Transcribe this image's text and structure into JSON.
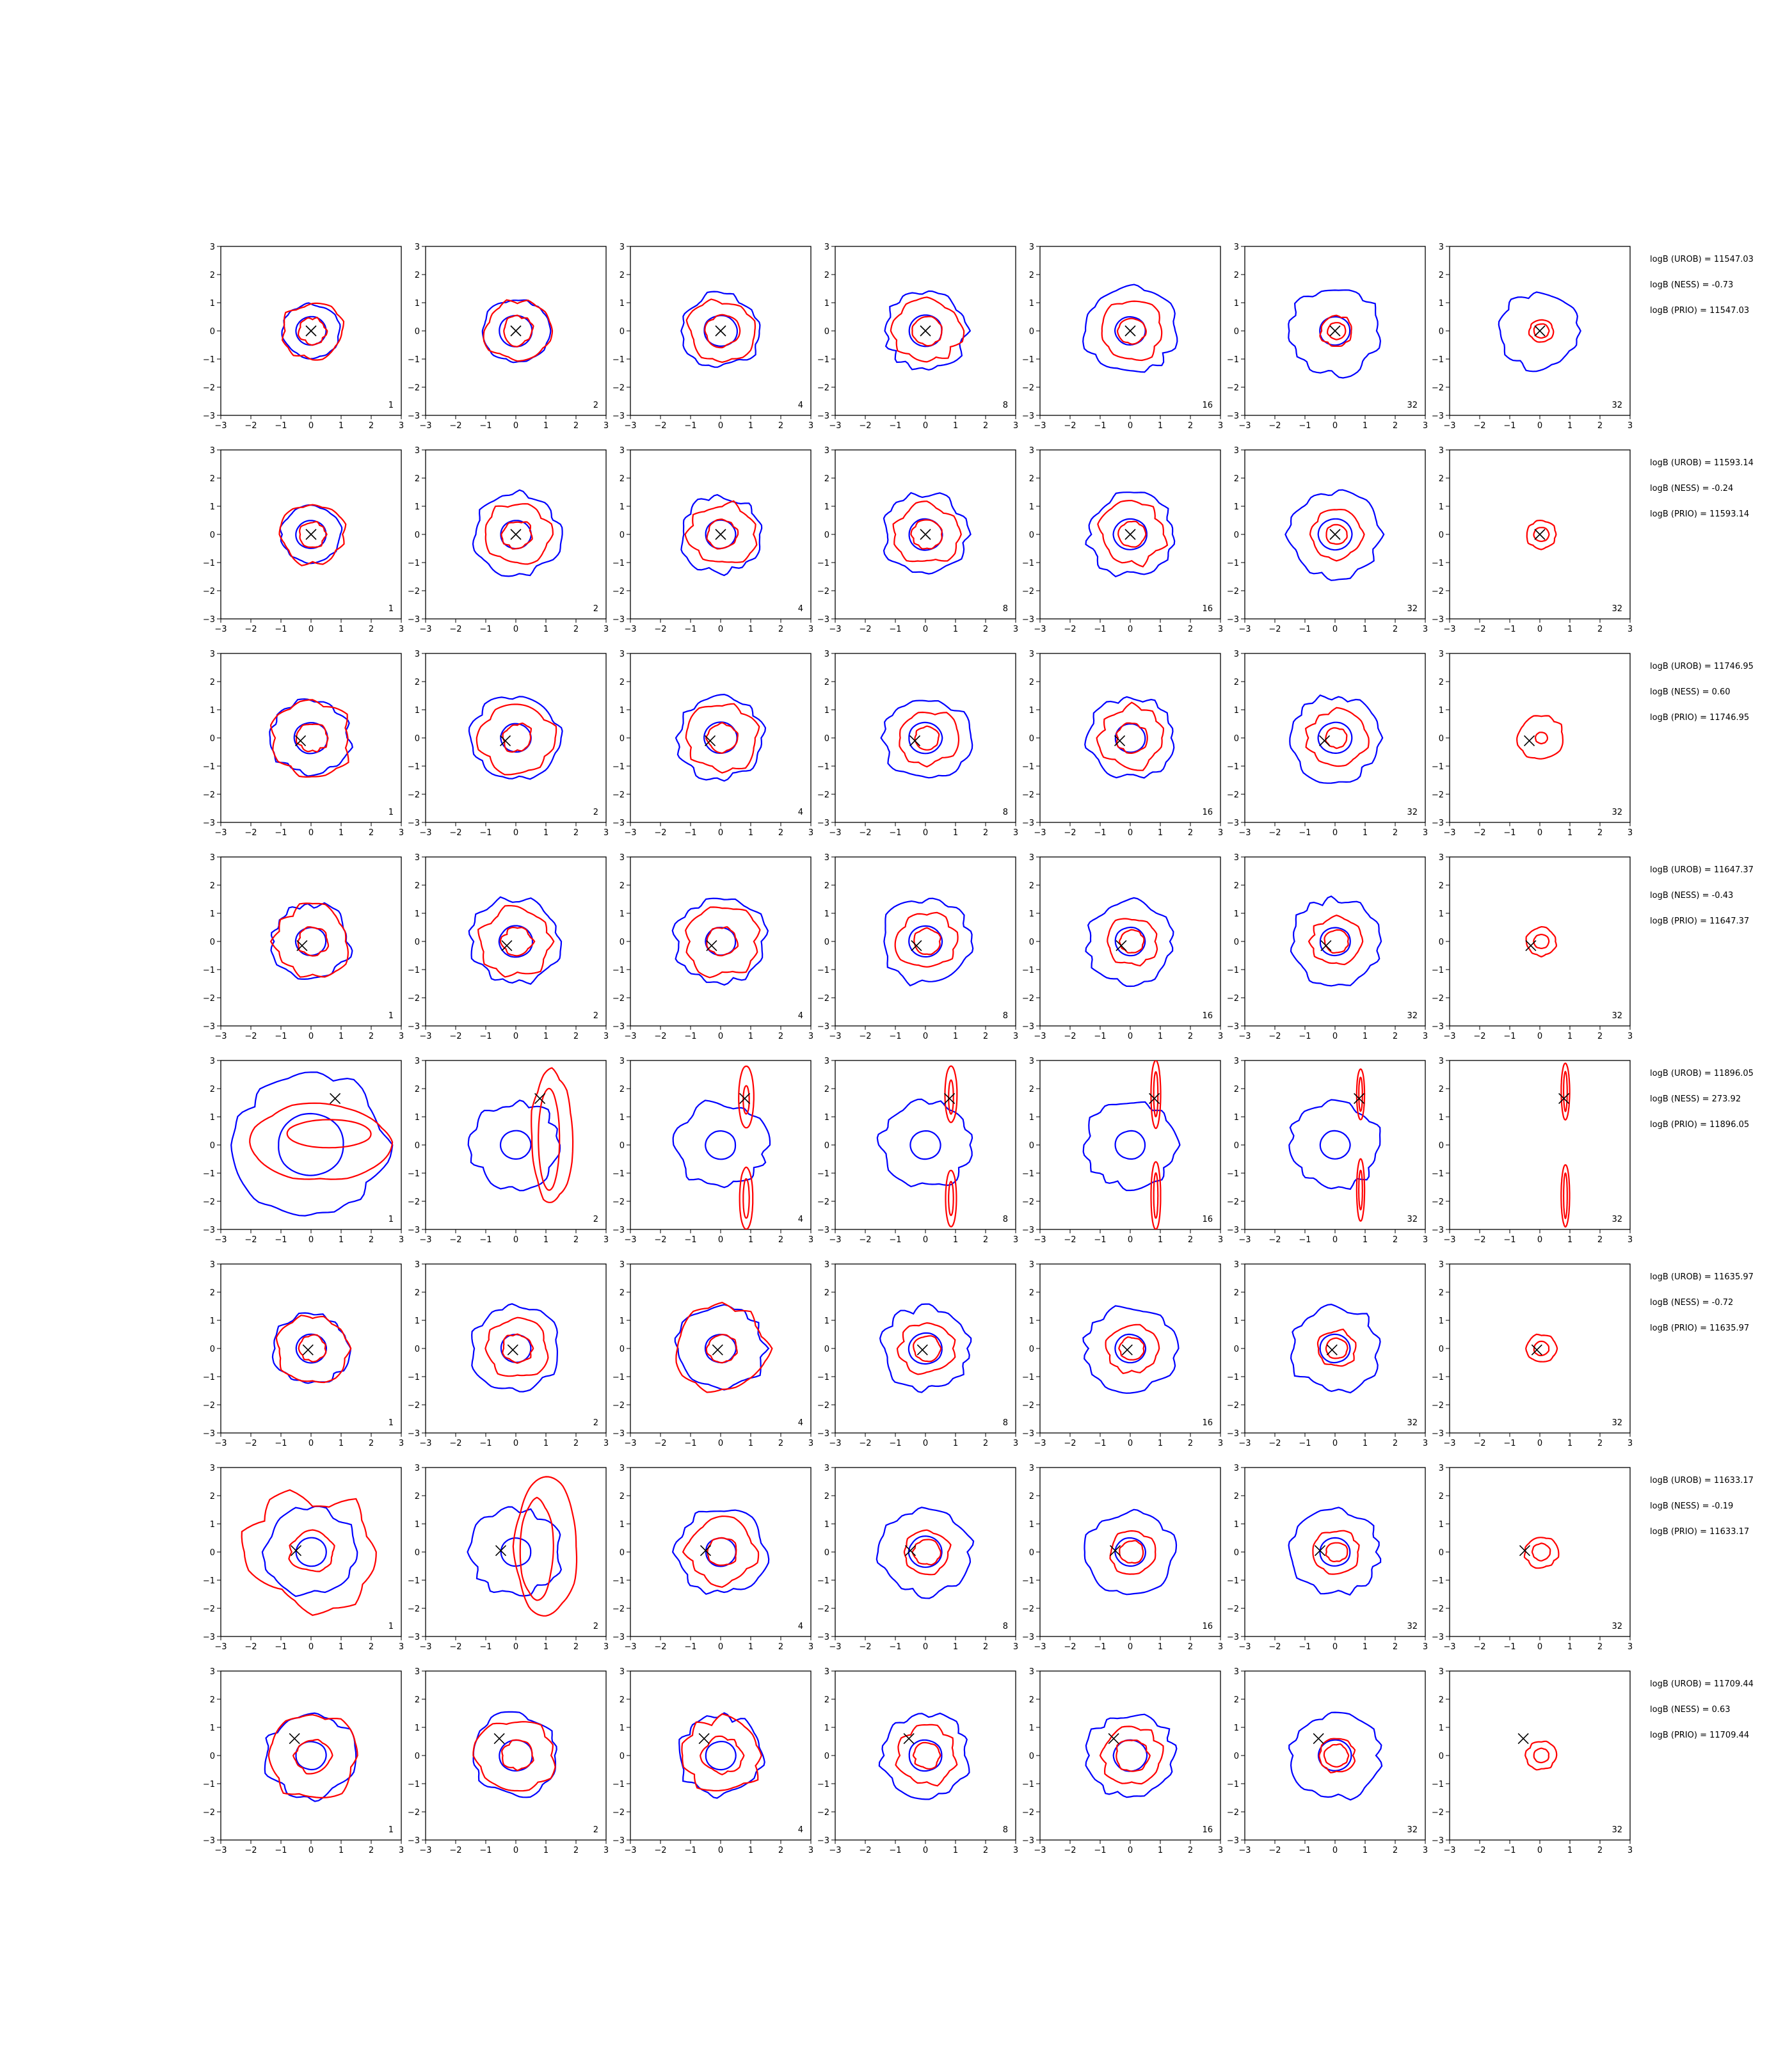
{
  "chart_data": {
    "type": "contour-grid",
    "title": "",
    "xlim": [
      -3,
      3
    ],
    "ylim": [
      -3,
      3
    ],
    "xticks": [
      "−3",
      "−2",
      "−1",
      "0",
      "1",
      "2",
      "3"
    ],
    "yticks": [
      "3",
      "2",
      "1",
      "0",
      "−1",
      "−2",
      "−3"
    ],
    "column_labels": [
      "1",
      "2",
      "4",
      "8",
      "16",
      "32",
      "32"
    ],
    "colors": {
      "reference": "#0000ff",
      "estimate": "#ff0000",
      "marker": "#000000",
      "axes": "#000000"
    },
    "rows": [
      {
        "marker": [
          0.0,
          0.0
        ],
        "stats": [
          "logB (UROB) = 11547.03",
          "logB (NESS) = -0.73",
          "logB (PRIO) = 11547.03"
        ],
        "blue": [
          [
            0.95,
            1.1,
            1.3,
            1.35,
            1.5,
            1.55,
            1.35
          ],
          [
            0.5,
            0.55,
            0.55,
            0.55,
            0.5,
            0.5,
            0
          ]
        ],
        "red": [
          [
            [
              1.0,
              0.45
            ],
            [
              1.05,
              0.5
            ],
            [
              1.1,
              0.55
            ],
            [
              1.1,
              0.5
            ],
            [
              1.0,
              0.6
            ],
            [
              0.55,
              0.45
            ],
            [
              0.4,
              0.3
            ]
          ],
          [
            [
              0.45,
              0.5
            ],
            [
              0.5,
              0.55
            ],
            [
              0.55,
              0.4
            ],
            [
              0.5,
              0.3
            ],
            [
              0.45,
              0.3
            ],
            [
              0.3,
              0.2
            ],
            [
              0.25,
              0.15
            ]
          ]
        ]
      },
      {
        "marker": [
          0.0,
          0.0
        ],
        "stats": [
          "logB (UROB) = 11593.14",
          "logB (NESS) = -0.24",
          "logB (PRIO) = 11593.14"
        ],
        "blue": [
          [
            1.0,
            1.45,
            1.35,
            1.4,
            1.45,
            1.5,
            0
          ],
          [
            0.5,
            0.5,
            0.5,
            0.55,
            0.55,
            0.55,
            0
          ]
        ],
        "red": [
          [
            [
              1.05,
              0.45
            ],
            [
              1.1,
              0.5
            ],
            [
              1.1,
              0.6
            ],
            [
              1.05,
              0.5
            ],
            [
              1.1,
              0.6
            ],
            [
              0.85,
              0.45
            ],
            [
              0.5,
              0.35
            ]
          ],
          [
            [
              0.45,
              0.5
            ],
            [
              0.5,
              0.55
            ],
            [
              0.5,
              0.4
            ],
            [
              0.5,
              0.3
            ],
            [
              0.45,
              0.3
            ],
            [
              0.35,
              0.2
            ],
            [
              0.25,
              0.15
            ]
          ]
        ]
      },
      {
        "marker": [
          -0.35,
          -0.1
        ],
        "stats": [
          "logB (UROB) = 11746.95",
          "logB (NESS) = 0.60",
          "logB (PRIO) = 11746.95"
        ],
        "blue": [
          [
            1.3,
            1.45,
            1.45,
            1.45,
            1.45,
            1.5,
            0
          ],
          [
            0.55,
            0.5,
            0.55,
            0.55,
            0.5,
            0.55,
            0
          ]
        ],
        "red": [
          [
            [
              1.3,
              0.55
            ],
            [
              1.2,
              0.6
            ],
            [
              1.2,
              0.55
            ],
            [
              1.0,
              0.55
            ],
            [
              1.1,
              0.65
            ],
            [
              1.0,
              0.55
            ],
            [
              0.75,
              0.45
            ]
          ],
          [
            [
              0.5,
              0.55
            ],
            [
              0.5,
              0.6
            ],
            [
              0.5,
              0.35
            ],
            [
              0.4,
              0.3
            ],
            [
              0.5,
              0.45
            ],
            [
              0.35,
              0.3
            ],
            [
              0.2,
              0.15
            ]
          ]
        ]
      },
      {
        "marker": [
          -0.3,
          -0.15
        ],
        "stats": [
          "logB (UROB) = 11647.37",
          "logB (NESS) = -0.43",
          "logB (PRIO) = 11647.37"
        ],
        "blue": [
          [
            1.3,
            1.5,
            1.5,
            1.5,
            1.45,
            1.5,
            0
          ],
          [
            0.5,
            0.55,
            0.5,
            0.55,
            0.5,
            0.5,
            0
          ]
        ],
        "red": [
          [
            [
              1.25,
              0.5
            ],
            [
              1.2,
              0.6
            ],
            [
              1.2,
              0.55
            ],
            [
              1.0,
              0.5
            ],
            [
              0.85,
              0.45
            ],
            [
              0.85,
              0.45
            ],
            [
              0.5,
              0.35
            ]
          ],
          [
            [
              0.5,
              0.55
            ],
            [
              0.5,
              0.6
            ],
            [
              0.5,
              0.4
            ],
            [
              0.45,
              0.3
            ],
            [
              0.4,
              0.3
            ],
            [
              0.4,
              0.3
            ],
            [
              0.25,
              0.15
            ]
          ]
        ]
      },
      {
        "marker": [
          0.8,
          1.65
        ],
        "stats": [
          "logB (UROB) = 11896.05",
          "logB (NESS) = 273.92",
          "logB (PRIO) = 11896.05"
        ],
        "blue": [
          [
            2.5,
            1.5,
            1.5,
            1.5,
            1.5,
            1.5,
            0
          ],
          [
            1.1,
            0.5,
            0.5,
            0.5,
            0.5,
            0.5,
            0
          ]
        ],
        "red": [],
        "red_shape": "off-center"
      },
      {
        "marker": [
          -0.1,
          -0.05
        ],
        "stats": [
          "logB (UROB) = 11635.97",
          "logB (NESS) = -0.72",
          "logB (PRIO) = 11635.97"
        ],
        "blue": [
          [
            1.25,
            1.45,
            1.5,
            1.45,
            1.5,
            1.5,
            0
          ],
          [
            0.5,
            0.5,
            0.5,
            0.55,
            0.5,
            0.5,
            0
          ]
        ],
        "red": [
          [
            [
              1.2,
              0.5
            ],
            [
              1.0,
              0.5
            ],
            [
              1.55,
              0.5
            ],
            [
              0.9,
              0.45
            ],
            [
              0.85,
              0.45
            ],
            [
              0.65,
              0.4
            ],
            [
              0.5,
              0.3
            ]
          ],
          [
            [
              0.45,
              0.55
            ],
            [
              0.5,
              0.55
            ],
            [
              0.5,
              0.35
            ],
            [
              0.45,
              0.3
            ],
            [
              0.4,
              0.3
            ],
            [
              0.35,
              0.3
            ],
            [
              0.25,
              0.15
            ]
          ]
        ]
      },
      {
        "marker": [
          -0.5,
          0.05
        ],
        "stats": [
          "logB (UROB) = 11633.17",
          "logB (NESS) = -0.19",
          "logB (PRIO) = 11633.17"
        ],
        "blue": [
          [
            1.5,
            1.5,
            1.5,
            1.5,
            1.45,
            1.45,
            0
          ],
          [
            0.5,
            0.5,
            0.5,
            0.55,
            0.5,
            0.5,
            0
          ]
        ],
        "red": [
          [
            [
              2.0,
              1.0
            ],
            [
              0,
              0
            ],
            [
              1.15,
              0.6
            ],
            [
              0.75,
              0.45
            ],
            [
              0.75,
              0.45
            ],
            [
              0.75,
              0.45
            ],
            [
              0.55,
              0.35
            ]
          ],
          [
            [
              0.75,
              0.5
            ],
            [
              0,
              0
            ],
            [
              0.5,
              0.35
            ],
            [
              0.45,
              0.35
            ],
            [
              0.4,
              0.3
            ],
            [
              0.35,
              0.3
            ],
            [
              0.3,
              0.2
            ]
          ]
        ],
        "red_shape_col2": "loop"
      },
      {
        "marker": [
          -0.55,
          0.6
        ],
        "stats": [
          "logB (UROB) = 11709.44",
          "logB (NESS) = 0.63",
          "logB (PRIO) = 11709.44"
        ],
        "blue": [
          [
            1.5,
            1.45,
            1.4,
            1.45,
            1.45,
            1.5,
            0
          ],
          [
            0.5,
            0.55,
            0.5,
            0.55,
            0.55,
            0.55,
            0
          ]
        ],
        "red": [
          [
            [
              1.5,
              0.45
            ],
            [
              1.3,
              0.55
            ],
            [
              1.3,
              0.55
            ],
            [
              1.0,
              0.55
            ],
            [
              1.0,
              0.45
            ],
            [
              0.6,
              0.45
            ],
            [
              0.5,
              0.35
            ]
          ],
          [
            [
              0.6,
              0.5
            ],
            [
              0.5,
              0.55
            ],
            [
              0.65,
              0.5
            ],
            [
              0.45,
              0.55
            ],
            [
              0.55,
              0.4
            ],
            [
              0.4,
              0.3
            ],
            [
              0.25,
              0.15
            ]
          ]
        ]
      }
    ]
  }
}
